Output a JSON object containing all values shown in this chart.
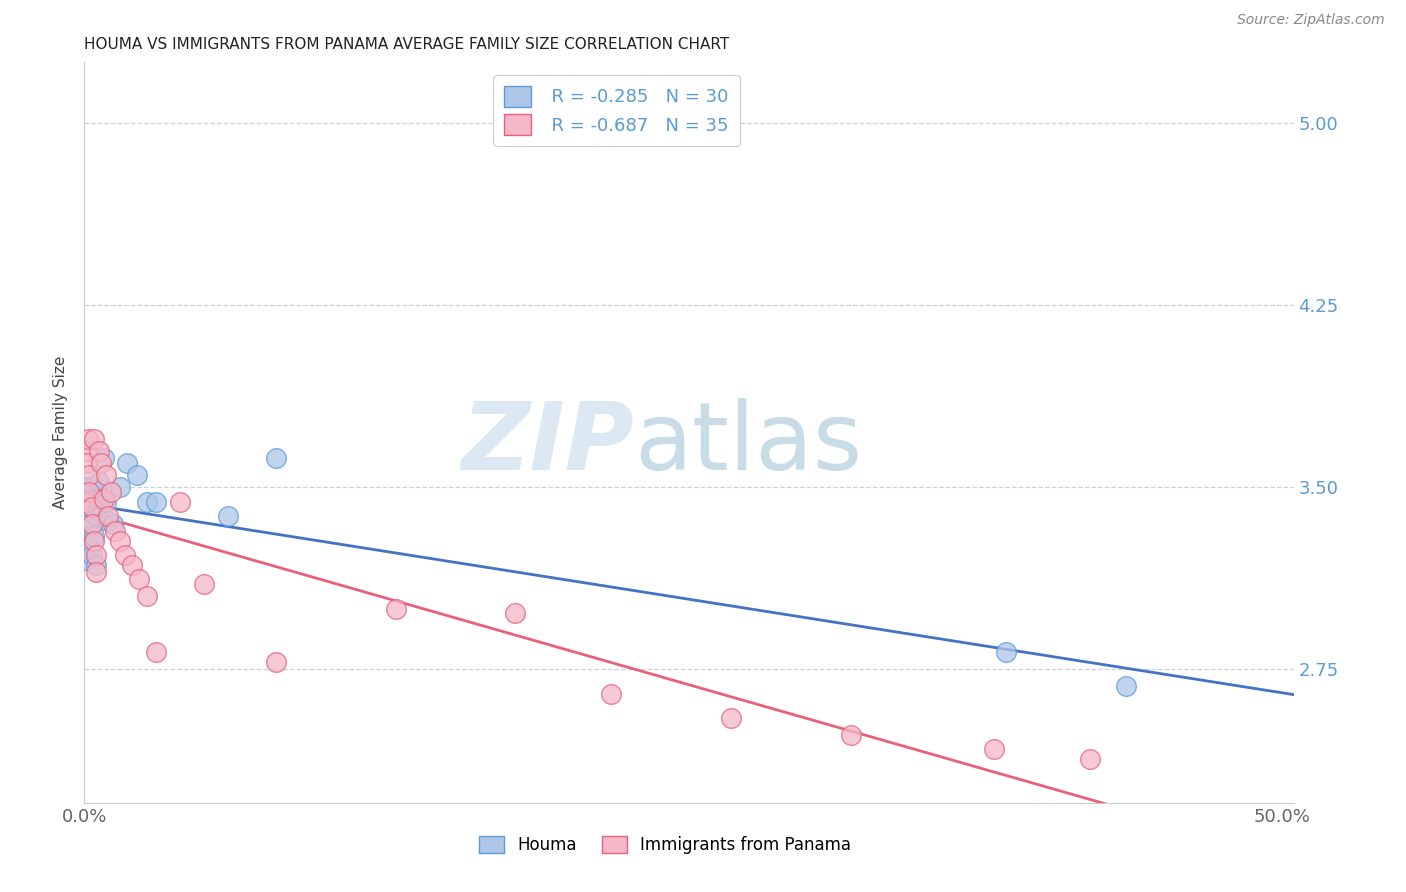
{
  "title": "HOUMA VS IMMIGRANTS FROM PANAMA AVERAGE FAMILY SIZE CORRELATION CHART",
  "source": "Source: ZipAtlas.com",
  "ylabel": "Average Family Size",
  "xlim": [
    0.0,
    0.505
  ],
  "ylim": [
    2.2,
    5.25
  ],
  "yticks": [
    2.75,
    3.5,
    4.25,
    5.0
  ],
  "xtick_positions": [
    0.0,
    0.5
  ],
  "xtick_labels": [
    "0.0%",
    "50.0%"
  ],
  "bg_color": "#ffffff",
  "grid_color": "#d0d0d0",
  "houma_fill": "#AEC6E8",
  "houma_edge": "#5B9BD5",
  "panama_fill": "#F4B8C8",
  "panama_edge": "#E8607A",
  "houma_line_color": "#4472C4",
  "panama_line_color": "#E8607A",
  "houma_R": -0.285,
  "houma_N": 30,
  "panama_R": -0.687,
  "panama_N": 35,
  "legend_text_color": "#5B9BD5",
  "legend_N_color": "#5B9BD5",
  "houma_x": [
    0.0005,
    0.0007,
    0.0008,
    0.001,
    0.001,
    0.0015,
    0.002,
    0.002,
    0.002,
    0.003,
    0.003,
    0.004,
    0.004,
    0.005,
    0.005,
    0.006,
    0.007,
    0.008,
    0.009,
    0.01,
    0.012,
    0.015,
    0.018,
    0.022,
    0.026,
    0.03,
    0.06,
    0.08,
    0.385,
    0.435
  ],
  "houma_y": [
    3.2,
    3.3,
    3.5,
    3.44,
    3.4,
    3.35,
    3.48,
    3.42,
    3.25,
    3.22,
    3.5,
    3.3,
    3.45,
    3.38,
    3.18,
    3.52,
    3.45,
    3.62,
    3.44,
    3.36,
    3.35,
    3.5,
    3.6,
    3.55,
    3.44,
    3.44,
    3.38,
    3.62,
    2.82,
    2.68
  ],
  "panama_x": [
    0.0005,
    0.001,
    0.001,
    0.0015,
    0.002,
    0.002,
    0.003,
    0.003,
    0.004,
    0.004,
    0.005,
    0.005,
    0.006,
    0.007,
    0.008,
    0.009,
    0.01,
    0.011,
    0.013,
    0.015,
    0.017,
    0.02,
    0.023,
    0.026,
    0.03,
    0.04,
    0.05,
    0.08,
    0.13,
    0.18,
    0.22,
    0.27,
    0.32,
    0.38,
    0.42
  ],
  "panama_y": [
    3.44,
    3.65,
    3.6,
    3.7,
    3.55,
    3.48,
    3.42,
    3.35,
    3.28,
    3.7,
    3.22,
    3.15,
    3.65,
    3.6,
    3.45,
    3.55,
    3.38,
    3.48,
    3.32,
    3.28,
    3.22,
    3.18,
    3.12,
    3.05,
    2.82,
    3.44,
    3.1,
    2.78,
    3.0,
    2.98,
    2.65,
    2.55,
    2.48,
    2.42,
    2.38
  ]
}
